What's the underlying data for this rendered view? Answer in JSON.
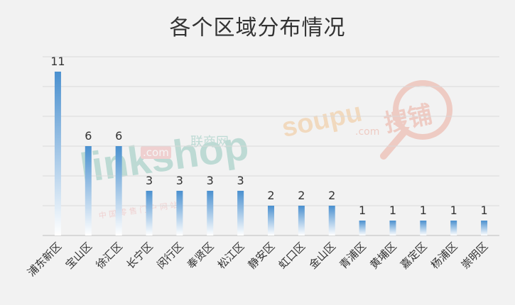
{
  "chart_data": {
    "type": "bar",
    "title": "各个区域分布情况",
    "categories": [
      "浦东新区",
      "宝山区",
      "徐汇区",
      "长宁区",
      "闵行区",
      "奉贤区",
      "松江区",
      "静安区",
      "虹口区",
      "金山区",
      "青浦区",
      "黄埔区",
      "嘉定区",
      "杨浦区",
      "崇明区"
    ],
    "values": [
      11,
      6,
      6,
      3,
      3,
      3,
      3,
      2,
      2,
      2,
      1,
      1,
      1,
      1,
      1
    ],
    "ylim": [
      0,
      12
    ],
    "grid": true,
    "legend": "none",
    "data_labels": true
  },
  "colors": {
    "background": "#f2f2f2",
    "bar_top": "#4a90cf",
    "bar_bottom": "#ffffff",
    "gridline": "#d9d9d9",
    "axis": "#bfbfbf",
    "text": "#333333"
  },
  "watermarks": {
    "linkshop_brand": "linkshop",
    "linkshop_dot_com": ".com",
    "linkshop_cn": "联商网",
    "linkshop_tagline": "中 国 零 售 门 户 网 站",
    "soupu_brand": "soupu",
    "soupu_dot_com": ".com",
    "soupu_cn": "搜铺"
  }
}
